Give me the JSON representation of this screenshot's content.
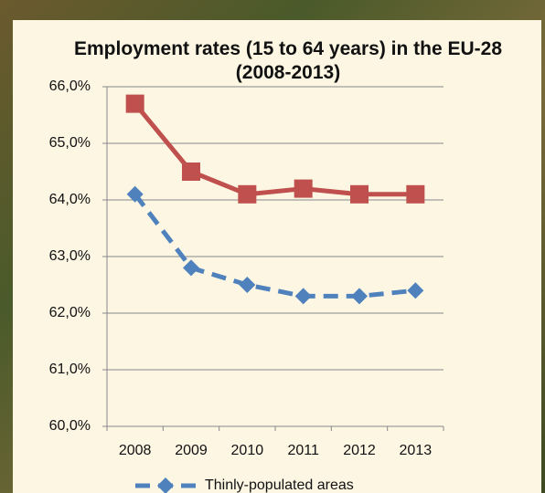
{
  "chart_data": {
    "type": "line",
    "title": "Employment rates (15 to 64 years) in the EU-28 (2008-2013)",
    "categories": [
      "2008",
      "2009",
      "2010",
      "2011",
      "2012",
      "2013"
    ],
    "series": [
      {
        "color": "#c0504d",
        "marker": "square",
        "dashed": false,
        "values": [
          65.7,
          64.5,
          64.1,
          64.2,
          64.1,
          64.1
        ]
      },
      {
        "name": "Thinly-populated areas",
        "color": "#4f81bd",
        "marker": "diamond",
        "dashed": true,
        "values": [
          64.1,
          62.8,
          62.5,
          62.3,
          62.3,
          62.4
        ]
      }
    ],
    "ylim": [
      60,
      66
    ],
    "yticks": [
      {
        "value": 60,
        "label": "60,0%"
      },
      {
        "value": 61,
        "label": "61,0%"
      },
      {
        "value": 62,
        "label": "62,0%"
      },
      {
        "value": 63,
        "label": "63,0%"
      },
      {
        "value": 64,
        "label": "64,0%"
      },
      {
        "value": 65,
        "label": "65,0%"
      },
      {
        "value": 66,
        "label": "66,0%"
      }
    ],
    "grid": true
  }
}
